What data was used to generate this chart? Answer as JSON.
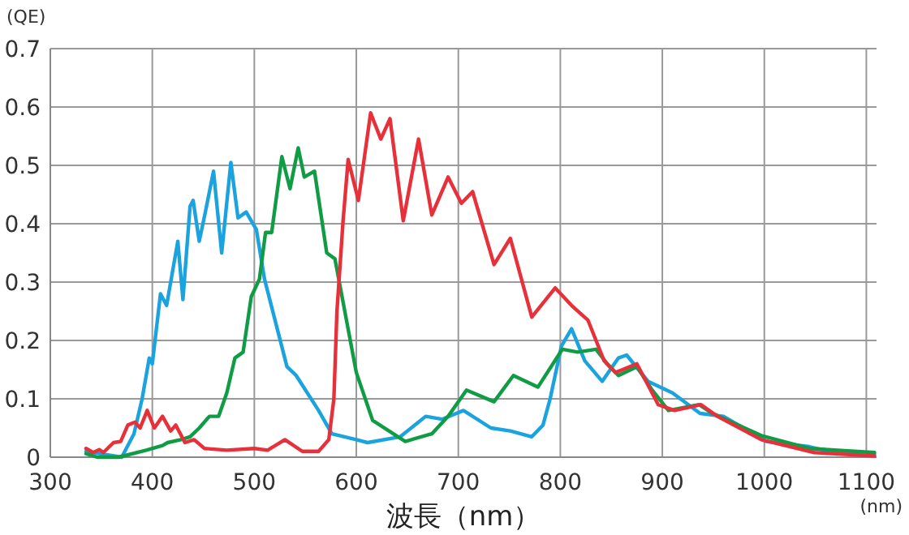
{
  "chart_data": {
    "type": "line",
    "ylabel": "(QE)",
    "xlabel": "波長（nm）",
    "annotations": [
      "(nm)"
    ],
    "xlim": [
      300,
      1110
    ],
    "ylim": [
      0,
      0.7
    ],
    "xticks": [
      300,
      400,
      500,
      600,
      700,
      800,
      900,
      1000,
      1100
    ],
    "yticks": [
      0,
      0.1,
      0.2,
      0.3,
      0.4,
      0.5,
      0.6,
      0.7
    ],
    "grid": true,
    "line_style": "solid",
    "series": [
      {
        "color": "#1aa3df",
        "x": [
          335,
          370,
          382,
          390,
          397,
          400,
          408,
          414,
          425,
          430,
          437,
          440,
          446,
          452,
          460,
          468,
          477,
          484,
          492,
          502,
          510,
          521,
          532,
          541,
          563,
          576,
          600,
          611,
          643,
          668,
          684,
          705,
          732,
          751,
          772,
          783,
          790,
          801,
          811,
          824,
          841,
          857,
          865,
          886,
          910,
          937,
          960,
          1002,
          1044,
          1071,
          1108
        ],
        "values": [
          0.01,
          0,
          0.04,
          0.1,
          0.17,
          0.16,
          0.28,
          0.26,
          0.37,
          0.27,
          0.43,
          0.44,
          0.37,
          0.42,
          0.49,
          0.35,
          0.505,
          0.41,
          0.42,
          0.39,
          0.305,
          0.23,
          0.155,
          0.14,
          0.08,
          0.04,
          0.03,
          0.025,
          0.035,
          0.07,
          0.065,
          0.08,
          0.05,
          0.045,
          0.035,
          0.055,
          0.1,
          0.19,
          0.22,
          0.165,
          0.13,
          0.17,
          0.175,
          0.13,
          0.11,
          0.075,
          0.07,
          0.027,
          0.018,
          0.007,
          0.005
        ]
      },
      {
        "color": "#109c45",
        "x": [
          335,
          346,
          367,
          394,
          410,
          415,
          428,
          437,
          446,
          456,
          465,
          473,
          481,
          489,
          497,
          505,
          511,
          517,
          527,
          535,
          543,
          549,
          559,
          571,
          579,
          600,
          616,
          648,
          674,
          690,
          708,
          735,
          754,
          778,
          802,
          817,
          835,
          846,
          857,
          875,
          890,
          906,
          936,
          949,
          997,
          1044,
          1108
        ],
        "values": [
          0.006,
          0,
          0,
          0.012,
          0.02,
          0.025,
          0.03,
          0.035,
          0.05,
          0.07,
          0.07,
          0.11,
          0.17,
          0.18,
          0.275,
          0.305,
          0.385,
          0.385,
          0.515,
          0.46,
          0.53,
          0.48,
          0.49,
          0.35,
          0.34,
          0.145,
          0.063,
          0.027,
          0.04,
          0.07,
          0.115,
          0.095,
          0.14,
          0.12,
          0.185,
          0.18,
          0.185,
          0.16,
          0.14,
          0.155,
          0.115,
          0.08,
          0.09,
          0.075,
          0.037,
          0.015,
          0.008
        ]
      },
      {
        "color": "#e8303a",
        "x": [
          335,
          342,
          348,
          352,
          362,
          369,
          376,
          383,
          388,
          395,
          402,
          410,
          418,
          423,
          432,
          441,
          451,
          473,
          500,
          513,
          530,
          547,
          563,
          573,
          578,
          581,
          587,
          592,
          602,
          614,
          624,
          633,
          646,
          661,
          674,
          690,
          703,
          714,
          735,
          751,
          772,
          795,
          811,
          827,
          843,
          854,
          875,
          896,
          912,
          938,
          954,
          997,
          1049,
          1108
        ],
        "values": [
          0.015,
          0.008,
          0.013,
          0.008,
          0.025,
          0.027,
          0.055,
          0.06,
          0.05,
          0.08,
          0.05,
          0.07,
          0.045,
          0.055,
          0.025,
          0.03,
          0.015,
          0.012,
          0.015,
          0.012,
          0.03,
          0.01,
          0.01,
          0.03,
          0.1,
          0.25,
          0.405,
          0.51,
          0.44,
          0.59,
          0.545,
          0.58,
          0.405,
          0.545,
          0.415,
          0.48,
          0.435,
          0.455,
          0.33,
          0.375,
          0.24,
          0.29,
          0.26,
          0.235,
          0.165,
          0.145,
          0.16,
          0.09,
          0.08,
          0.09,
          0.07,
          0.03,
          0.008,
          0.002
        ]
      }
    ]
  }
}
